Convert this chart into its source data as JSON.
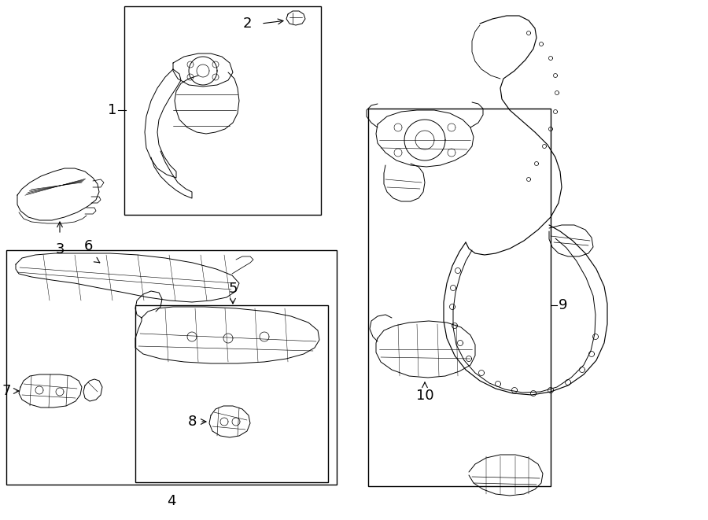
{
  "bg": "#ffffff",
  "lc": "#000000",
  "lw": 0.7,
  "blw": 1.0,
  "fw": 9.0,
  "fh": 6.61,
  "dpi": 100,
  "box1": [
    158,
    10,
    248,
    10,
    248,
    268,
    158,
    268
  ],
  "box4": [
    8,
    320,
    424,
    320,
    424,
    610,
    8,
    610
  ],
  "box5": [
    170,
    390,
    418,
    390,
    418,
    590,
    170,
    590
  ],
  "box9": [
    468,
    140,
    698,
    140,
    698,
    620,
    468,
    620
  ]
}
